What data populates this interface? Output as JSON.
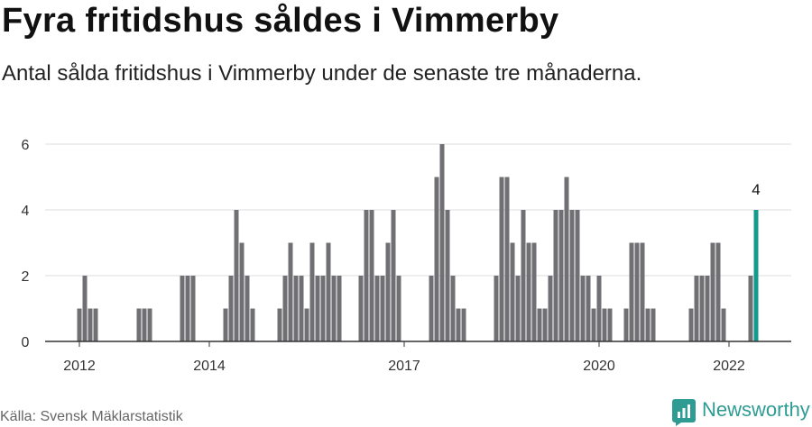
{
  "chart_data": {
    "type": "bar",
    "title": "Fyra fritidshus såldes i Vimmerby",
    "subtitle": "Antal sålda fritidshus i Vimmerby under de senaste tre månaderna.",
    "source": "Källa: Svensk Mäklarstatistik",
    "ylim": [
      0,
      6
    ],
    "y_ticks": [
      0,
      2,
      4,
      6
    ],
    "xlim": {
      "start": [
        2011,
        7
      ],
      "end": [
        2022,
        12
      ]
    },
    "x_ticks": [
      {
        "label": "2012",
        "year": 2012,
        "month": 1
      },
      {
        "label": "2014",
        "year": 2014,
        "month": 1
      },
      {
        "label": "2017",
        "year": 2017,
        "month": 1
      },
      {
        "label": "2020",
        "year": 2020,
        "month": 1
      },
      {
        "label": "2022",
        "year": 2022,
        "month": 1
      }
    ],
    "grid": true,
    "monthly_values": [
      {
        "year": 2012,
        "values": [
          1,
          2,
          1,
          1,
          0,
          0,
          0,
          0,
          0,
          0,
          0,
          1
        ]
      },
      {
        "year": 2013,
        "values": [
          1,
          1,
          0,
          0,
          0,
          0,
          0,
          2,
          2,
          2,
          0,
          0
        ]
      },
      {
        "year": 2014,
        "values": [
          0,
          0,
          0,
          1,
          2,
          4,
          3,
          2,
          1,
          0,
          0,
          0
        ]
      },
      {
        "year": 2015,
        "values": [
          0,
          1,
          2,
          3,
          2,
          2,
          1,
          3,
          2,
          2,
          3,
          2
        ]
      },
      {
        "year": 2016,
        "values": [
          2,
          0,
          0,
          0,
          2,
          4,
          4,
          2,
          2,
          3,
          4,
          2
        ]
      },
      {
        "year": 2017,
        "values": [
          0,
          0,
          0,
          0,
          0,
          2,
          5,
          6,
          4,
          2,
          1,
          1
        ]
      },
      {
        "year": 2018,
        "values": [
          0,
          0,
          0,
          0,
          0,
          2,
          5,
          5,
          3,
          2,
          4,
          3
        ]
      },
      {
        "year": 2019,
        "values": [
          3,
          1,
          1,
          2,
          4,
          4,
          5,
          4,
          4,
          2,
          2,
          1
        ]
      },
      {
        "year": 2020,
        "values": [
          2,
          1,
          1,
          0,
          0,
          1,
          3,
          3,
          3,
          1,
          1,
          0
        ]
      },
      {
        "year": 2021,
        "values": [
          0,
          0,
          0,
          0,
          0,
          1,
          2,
          2,
          2,
          3,
          3,
          1
        ]
      },
      {
        "year": 2022,
        "values": [
          0,
          0,
          0,
          0,
          2,
          4
        ]
      }
    ],
    "highlight": {
      "year": 2022,
      "month": 6,
      "value_label": "4"
    }
  },
  "footer": {
    "brand": "Newsworthy",
    "brand_icon": "newsworthy-logo-icon"
  },
  "colors": {
    "bar": "#707074",
    "highlight": "#14998c",
    "grid": "#dedede",
    "axis": "#333333",
    "text": "#333333",
    "label": "#111111",
    "brand": "#2e9c93"
  }
}
